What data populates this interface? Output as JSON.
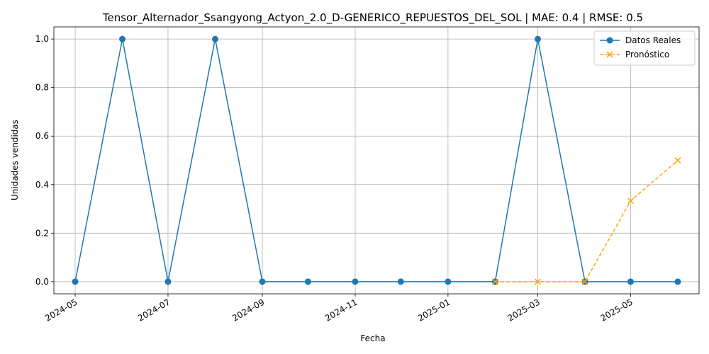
{
  "chart_data": {
    "type": "line",
    "title": "Tensor_Alternador_Ssangyong_Actyon_2.0_D-GENERICO_REPUESTOS_DEL_SOL | MAE: 0.4 | RMSE: 0.5",
    "xlabel": "Fecha",
    "ylabel": "Unidades vendidas",
    "ylim": [
      -0.05,
      1.05
    ],
    "xlim": [
      "2024-04-17",
      "2025-06-15"
    ],
    "grid": true,
    "legend_position": "top-right",
    "x_ticks": [
      "2024-05",
      "2024-07",
      "2024-09",
      "2024-11",
      "2025-01",
      "2025-03",
      "2025-05"
    ],
    "y_ticks": [
      "0.0",
      "0.2",
      "0.4",
      "0.6",
      "0.8",
      "1.0"
    ],
    "series": [
      {
        "name": "Datos Reales",
        "color": "#1f77b4",
        "style": "solid",
        "marker": "circle",
        "x": [
          "2024-05-01",
          "2024-06-01",
          "2024-07-01",
          "2024-08-01",
          "2024-09-01",
          "2024-10-01",
          "2024-11-01",
          "2024-12-01",
          "2025-01-01",
          "2025-02-01",
          "2025-03-01",
          "2025-04-01",
          "2025-05-01",
          "2025-06-01"
        ],
        "values": [
          0,
          1,
          0,
          1,
          0,
          0,
          0,
          0,
          0,
          0,
          1,
          0,
          0,
          0
        ]
      },
      {
        "name": "Pronóstico",
        "color": "#ffa500",
        "style": "dashed",
        "marker": "x",
        "x": [
          "2025-02-01",
          "2025-03-01",
          "2025-04-01",
          "2025-05-01",
          "2025-06-01"
        ],
        "values": [
          0,
          0,
          0,
          0.333,
          0.5
        ]
      }
    ]
  }
}
